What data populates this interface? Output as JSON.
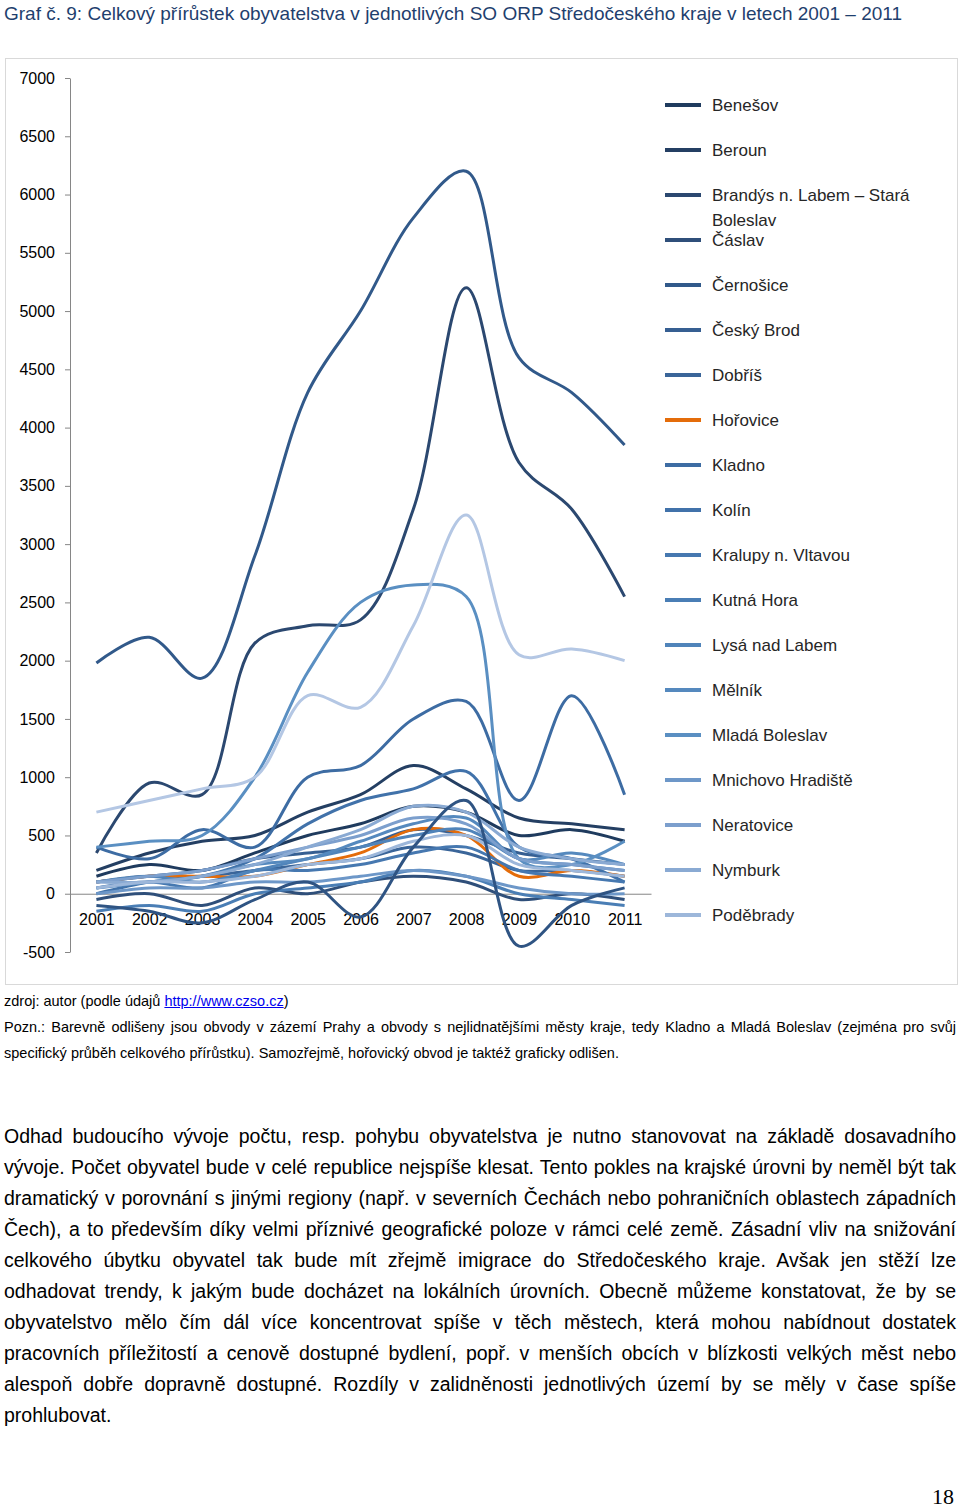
{
  "chart_data": {
    "type": "line",
    "title": "Graf č. 9: Celkový přírůstek obyvatelstva v jednotlivých SO ORP Středočeského kraje v letech 2001 – 2011",
    "categories": [
      "2001",
      "2002",
      "2003",
      "2004",
      "2005",
      "2006",
      "2007",
      "2008",
      "2009",
      "2010",
      "2011"
    ],
    "ylim": [
      -500,
      7000
    ],
    "yticks": [
      -500,
      0,
      500,
      1000,
      1500,
      2000,
      2500,
      3000,
      3500,
      4000,
      4500,
      5000,
      5500,
      6000,
      6500,
      7000
    ],
    "grid": false,
    "legend": "right",
    "series": [
      {
        "name": "Benešov",
        "color": "#1f3b5e",
        "values": [
          150,
          250,
          200,
          350,
          500,
          600,
          750,
          700,
          500,
          550,
          450
        ]
      },
      {
        "name": "Beroun",
        "color": "#243f63",
        "values": [
          200,
          350,
          450,
          500,
          700,
          850,
          1100,
          900,
          650,
          600,
          550
        ]
      },
      {
        "name": "Brandýs n. Labem – Stará Boleslav",
        "color": "#2b4870",
        "values": [
          350,
          950,
          850,
          2150,
          2300,
          2350,
          3300,
          5200,
          3700,
          3300,
          2550
        ]
      },
      {
        "name": "Čáslav",
        "color": "#2f4f7a",
        "values": [
          -50,
          0,
          -100,
          50,
          0,
          100,
          150,
          100,
          -50,
          0,
          -50
        ]
      },
      {
        "name": "Černošice",
        "color": "#31598a",
        "values": [
          1980,
          2200,
          1850,
          2900,
          4300,
          5000,
          5800,
          6200,
          4600,
          4300,
          3850
        ]
      },
      {
        "name": "Český Brod",
        "color": "#365f92",
        "values": [
          100,
          150,
          200,
          300,
          350,
          400,
          550,
          500,
          350,
          300,
          250
        ]
      },
      {
        "name": "Dobříš",
        "color": "#3a6599",
        "values": [
          100,
          150,
          150,
          200,
          250,
          300,
          400,
          350,
          200,
          200,
          150
        ]
      },
      {
        "name": "Hořovice",
        "color": "#e46c0a",
        "values": [
          100,
          150,
          150,
          150,
          250,
          350,
          550,
          500,
          150,
          200,
          150
        ]
      },
      {
        "name": "Kladno",
        "color": "#3d6ca3",
        "values": [
          400,
          300,
          550,
          400,
          1000,
          1100,
          1500,
          1650,
          800,
          1700,
          850
        ]
      },
      {
        "name": "Kolín",
        "color": "#4172aa",
        "values": [
          0,
          100,
          150,
          300,
          600,
          800,
          900,
          1050,
          400,
          300,
          100
        ]
      },
      {
        "name": "Kralupy n. Vltavou",
        "color": "#4678b0",
        "values": [
          50,
          100,
          50,
          200,
          200,
          250,
          350,
          400,
          200,
          150,
          100
        ]
      },
      {
        "name": "Kutná Hora",
        "color": "#4a7eb5",
        "values": [
          -150,
          -100,
          -150,
          0,
          50,
          100,
          200,
          150,
          0,
          -50,
          -100
        ]
      },
      {
        "name": "Lysá nad Labem",
        "color": "#5084ba",
        "values": [
          100,
          150,
          100,
          200,
          300,
          400,
          500,
          550,
          300,
          250,
          200
        ]
      },
      {
        "name": "Mělník",
        "color": "#5589be",
        "values": [
          50,
          100,
          150,
          250,
          300,
          450,
          600,
          650,
          300,
          350,
          250
        ]
      },
      {
        "name": "Mladá Boleslav",
        "color": "#5a8fc2",
        "values": [
          400,
          450,
          500,
          1000,
          1900,
          2500,
          2650,
          2550,
          300,
          250,
          450
        ]
      },
      {
        "name": "Mnichovo Hradiště",
        "color": "#6d97c8",
        "values": [
          0,
          50,
          50,
          100,
          100,
          150,
          200,
          150,
          50,
          0,
          0
        ]
      },
      {
        "name": "Neratovice",
        "color": "#7c9fcd",
        "values": [
          100,
          150,
          200,
          300,
          400,
          500,
          650,
          600,
          300,
          250,
          200
        ]
      },
      {
        "name": "Nymburk",
        "color": "#8aaad3",
        "values": [
          100,
          100,
          150,
          250,
          400,
          550,
          750,
          700,
          400,
          300,
          250
        ]
      },
      {
        "name": "Poděbrady",
        "color": "#9db7da",
        "values": [
          50,
          100,
          100,
          150,
          250,
          300,
          450,
          500,
          250,
          200,
          150
        ]
      },
      {
        "color": "#b4c7e4",
        "values": [
          700,
          800,
          900,
          1000,
          1700,
          1600,
          2300,
          3250,
          2050,
          2100,
          2000
        ]
      },
      {
        "color": "#2f5483",
        "values": [
          -100,
          -150,
          -250,
          -50,
          100,
          -200,
          400,
          800,
          -450,
          -100,
          50
        ]
      }
    ]
  },
  "source": {
    "text_before": "zdroj: autor (podle údajů ",
    "link": "http://www.czso.cz",
    "text_after": ")"
  },
  "note": "Pozn.: Barevně odlišeny jsou obvody v zázemí Prahy a obvody s nejlidnatějšími městy kraje, tedy Kladno a Mladá Boleslav (zejména pro svůj specifický průběh celkového přírůstku). Samozřejmě, hořovický obvod je taktéž graficky odlišen.",
  "paragraph": "Odhad budoucího vývoje počtu, resp. pohybu obyvatelstva je nutno stanovovat na základě dosavadního vývoje. Počet obyvatel bude v celé republice nejspíše klesat. Tento pokles na krajské úrovni by neměl být tak dramatický v porovnání s jinými regiony (např. v severních Čechách nebo pohraničních oblastech západních Čech), a to především díky velmi příznivé geografické poloze v rámci celé země. Zásadní vliv na snižování celkového úbytku obyvatel tak bude mít zřejmě imigrace do Středočeského kraje. Avšak jen stěží lze odhadovat trendy, k jakým bude docházet na lokálních úrovních. Obecně můžeme konstatovat, že by se obyvatelstvo mělo čím dál více koncentrovat spíše v těch městech, která mohou nabídnout dostatek pracovních příležitostí a cenově dostupné bydlení, popř. v menších obcích v blízkosti velkých měst nebo alespoň dobře dopravně dostupné. Rozdíly v zalidněnosti jednotlivých území by se měly v čase spíše prohlubovat.",
  "page_number": "18"
}
